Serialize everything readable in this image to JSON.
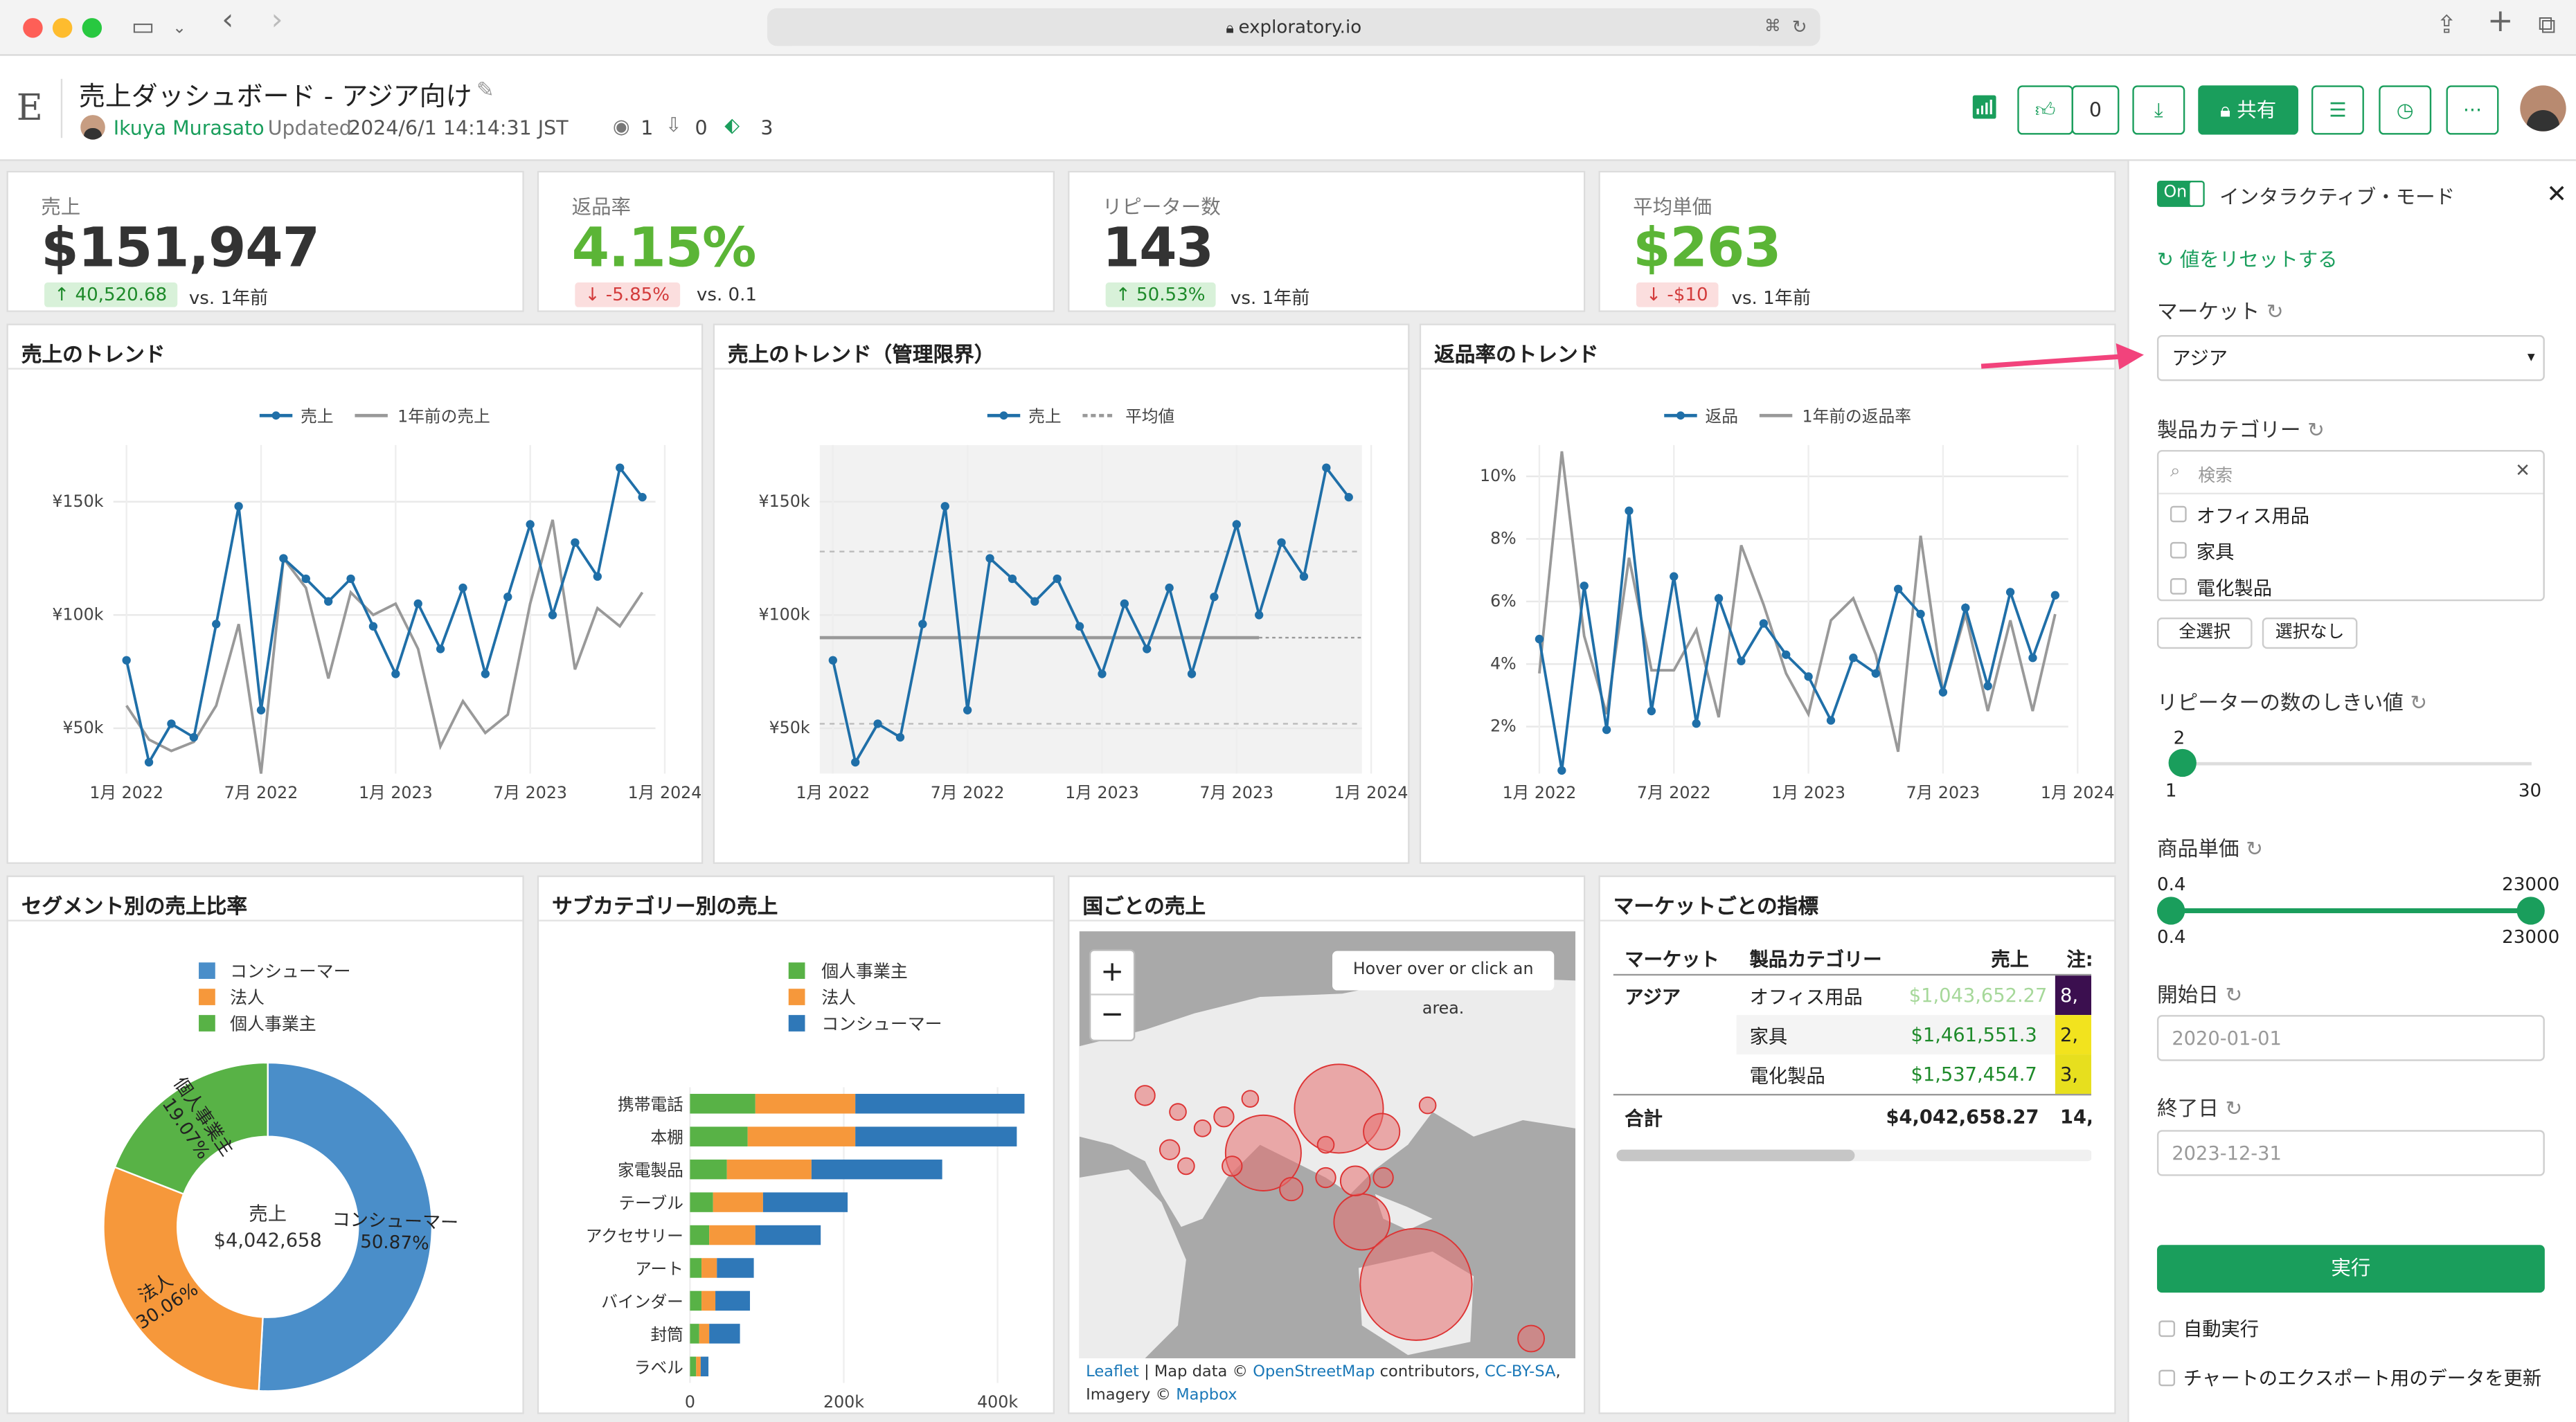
{
  "browser": {
    "url": "exploratory.io"
  },
  "header": {
    "logo": "E",
    "title": "売上ダッシュボード - アジア向け",
    "author": "Ikuya Murasato",
    "updated_prefix": "Updated",
    "updated_value": "2024/6/1 14:14:31 JST",
    "views": "1",
    "downloads": "0",
    "tags": "3",
    "like_count": "0",
    "share_label": "共有"
  },
  "kpis": [
    {
      "label": "売上",
      "value": "$151,947",
      "badge": "40,520.68",
      "badge_dir": "up",
      "vs": "vs. 1年前",
      "value_color": "#333333"
    },
    {
      "label": "返品率",
      "value": "4.15%",
      "badge": "-5.85%",
      "badge_dir": "down",
      "vs": "vs. 0.1",
      "value_color": "#5bb536"
    },
    {
      "label": "リピーター数",
      "value": "143",
      "badge": "50.53%",
      "badge_dir": "up",
      "vs": "vs. 1年前",
      "value_color": "#333333"
    },
    {
      "label": "平均単価",
      "value": "$263",
      "badge": "-$10",
      "badge_dir": "down",
      "vs": "vs. 1年前",
      "value_color": "#5bb536"
    }
  ],
  "trend1": {
    "title": "売上のトレンド",
    "legend_a": "売上",
    "legend_b": "1年前の売上",
    "yticks": [
      "¥150k",
      "¥100k",
      "¥50k"
    ],
    "xticks": [
      "1月 2022",
      "7月 2022",
      "1月 2023",
      "7月 2023",
      "1月 2024"
    ]
  },
  "trend2": {
    "title": "売上のトレンド（管理限界）",
    "legend_a": "売上",
    "legend_b": "平均値",
    "yticks": [
      "¥150k",
      "¥100k",
      "¥50k"
    ],
    "xticks": [
      "1月 2022",
      "7月 2022",
      "1月 2023",
      "7月 2023",
      "1月 2024"
    ]
  },
  "trend3": {
    "title": "返品率のトレンド",
    "legend_a": "返品",
    "legend_b": "1年前の返品率",
    "yticks": [
      "10%",
      "8%",
      "6%",
      "4%",
      "2%"
    ],
    "xticks": [
      "1月 2022",
      "7月 2022",
      "1月 2023",
      "7月 2023",
      "1月 2024"
    ]
  },
  "chart_data": [
    {
      "type": "line",
      "title": "売上のトレンド",
      "x": [
        "2022-01",
        "2022-02",
        "2022-03",
        "2022-04",
        "2022-05",
        "2022-06",
        "2022-07",
        "2022-08",
        "2022-09",
        "2022-10",
        "2022-11",
        "2022-12",
        "2023-01",
        "2023-02",
        "2023-03",
        "2023-04",
        "2023-05",
        "2023-06",
        "2023-07",
        "2023-08",
        "2023-09",
        "2023-10",
        "2023-11",
        "2023-12"
      ],
      "series": [
        {
          "name": "売上",
          "color": "#1f6fa8",
          "values": [
            80000,
            35000,
            52000,
            46000,
            96000,
            148000,
            58000,
            125000,
            116000,
            106000,
            116000,
            95000,
            74000,
            105000,
            85000,
            112000,
            74000,
            108000,
            140000,
            100000,
            132000,
            117000,
            165000,
            152000
          ]
        },
        {
          "name": "1年前の売上",
          "color": "#999999",
          "values": [
            60000,
            45000,
            40000,
            44000,
            60000,
            96000,
            30000,
            125000,
            112000,
            72000,
            110000,
            100000,
            105000,
            85000,
            42000,
            62000,
            48000,
            56000,
            105000,
            142000,
            76000,
            103000,
            95000,
            110000
          ]
        }
      ],
      "ylim": [
        30000,
        175000
      ]
    },
    {
      "type": "line",
      "title": "売上のトレンド（管理限界）",
      "x": [
        "2022-01",
        "2022-02",
        "2022-03",
        "2022-04",
        "2022-05",
        "2022-06",
        "2022-07",
        "2022-08",
        "2022-09",
        "2022-10",
        "2022-11",
        "2022-12",
        "2023-01",
        "2023-02",
        "2023-03",
        "2023-04",
        "2023-05",
        "2023-06",
        "2023-07",
        "2023-08",
        "2023-09",
        "2023-10",
        "2023-11",
        "2023-12"
      ],
      "series": [
        {
          "name": "売上",
          "color": "#1f6fa8",
          "values": [
            80000,
            35000,
            52000,
            46000,
            96000,
            148000,
            58000,
            125000,
            116000,
            106000,
            116000,
            95000,
            74000,
            105000,
            85000,
            112000,
            74000,
            108000,
            140000,
            100000,
            132000,
            117000,
            165000,
            152000
          ]
        }
      ],
      "mean": 90000,
      "ucl": 128000,
      "lcl": 52000,
      "ylim": [
        30000,
        175000
      ]
    },
    {
      "type": "line",
      "title": "返品率のトレンド",
      "x": [
        "2022-01",
        "2022-02",
        "2022-03",
        "2022-04",
        "2022-05",
        "2022-06",
        "2022-07",
        "2022-08",
        "2022-09",
        "2022-10",
        "2022-11",
        "2022-12",
        "2023-01",
        "2023-02",
        "2023-03",
        "2023-04",
        "2023-05",
        "2023-06",
        "2023-07",
        "2023-08",
        "2023-09",
        "2023-10",
        "2023-11",
        "2023-12"
      ],
      "series": [
        {
          "name": "返品",
          "color": "#1f6fa8",
          "values": [
            4.8,
            0.6,
            6.5,
            1.9,
            8.9,
            2.5,
            6.8,
            2.1,
            6.1,
            4.1,
            5.3,
            4.3,
            3.6,
            2.2,
            4.2,
            3.7,
            6.4,
            5.6,
            3.1,
            5.8,
            3.3,
            6.3,
            4.2,
            6.2
          ]
        },
        {
          "name": "1年前の返品率",
          "color": "#999999",
          "values": [
            3.7,
            10.8,
            4.9,
            2.4,
            7.4,
            3.8,
            3.8,
            5.1,
            2.3,
            7.8,
            5.9,
            3.7,
            2.4,
            5.4,
            6.1,
            4.3,
            1.2,
            8.1,
            3.1,
            5.6,
            2.5,
            5.4,
            2.5,
            5.6
          ]
        }
      ],
      "ylim": [
        0.5,
        11
      ]
    },
    {
      "type": "pie",
      "title": "セグメント別の売上比率",
      "categories": [
        "コンシューマー",
        "法人",
        "個人事業主"
      ],
      "values": [
        50.87,
        30.06,
        19.07
      ],
      "colors": [
        "#4a8ec9",
        "#f6983b",
        "#58b246"
      ],
      "center_label": "売上",
      "center_value": "$4,042,658"
    },
    {
      "type": "bar",
      "title": "サブカテゴリー別の売上",
      "categories": [
        "携帯電話",
        "本棚",
        "家電製品",
        "テーブル",
        "アクセサリー",
        "アート",
        "バインダー",
        "封筒",
        "ラベル"
      ],
      "series": [
        {
          "name": "個人事業主",
          "color": "#58b246",
          "values": [
            85000,
            75000,
            48000,
            30000,
            25000,
            15000,
            15000,
            12000,
            8000
          ]
        },
        {
          "name": "法人",
          "color": "#f6983b",
          "values": [
            130000,
            140000,
            110000,
            65000,
            60000,
            20000,
            18000,
            13000,
            6000
          ]
        },
        {
          "name": "コンシューマー",
          "color": "#2f78b8",
          "values": [
            220000,
            210000,
            170000,
            110000,
            85000,
            48000,
            45000,
            40000,
            10000
          ]
        }
      ],
      "xticks": [
        "0",
        "200k",
        "400k"
      ],
      "xlabel": "売上",
      "xlim": [
        0,
        470000
      ]
    }
  ],
  "segment": {
    "title": "セグメント別の売上比率",
    "legend": [
      "コンシューマー",
      "法人",
      "個人事業主"
    ],
    "center_label": "売上",
    "center_value": "$4,042,658",
    "pct": [
      "50.87%",
      "30.06%",
      "19.07%"
    ]
  },
  "subcat": {
    "title": "サブカテゴリー別の売上",
    "legend": [
      "個人事業主",
      "法人",
      "コンシューマー"
    ],
    "xlabel": "売上",
    "xticks": [
      "0",
      "200k",
      "400k"
    ]
  },
  "map": {
    "title": "国ごとの売上",
    "hover_text": "Hover over or click an area.",
    "zoom_in": "+",
    "zoom_out": "−",
    "attr_leaflet": "Leaflet",
    "attr_mid": " | Map data © ",
    "attr_osm": "OpenStreetMap",
    "attr_contrib": " contributors, ",
    "attr_license": "CC-BY-SA",
    "attr_comma": ",",
    "attr_imagery": "Imagery © ",
    "attr_mapbox": "Mapbox"
  },
  "table": {
    "title": "マーケットごとの指標",
    "headers": [
      "マーケット",
      "製品カテゴリー",
      "売上",
      "注:"
    ],
    "rows": [
      {
        "market": "アジア",
        "category": "オフィス用品",
        "sales": "$1,043,652.27",
        "note": "8,",
        "note_color": "#3b0f4f",
        "sales_color": "#a6d89a"
      },
      {
        "market": "",
        "category": "家具",
        "sales": "$1,461,551.3",
        "note": "2,",
        "note_color": "#f2e31e",
        "sales_color": "#1e8a2a"
      },
      {
        "market": "",
        "category": "電化製品",
        "sales": "$1,537,454.7",
        "note": "3,",
        "note_color": "#e7df1e",
        "sales_color": "#1e8a2a"
      }
    ],
    "total_label": "合計",
    "total_sales": "$4,042,658.27",
    "total_note": "14,"
  },
  "side": {
    "toggle": "On",
    "mode_label": "インタラクティブ・モード",
    "reset_label": "値をリセットする",
    "market_label": "マーケット",
    "market_value": "アジア",
    "category_label": "製品カテゴリー",
    "search_placeholder": "検索",
    "categories": [
      "オフィス用品",
      "家具",
      "電化製品"
    ],
    "select_all": "全選択",
    "select_none": "選択なし",
    "repeater_label": "リピーターの数のしきい値",
    "repeater_value": "2",
    "repeater_min": "1",
    "repeater_max": "30",
    "repeater_level": 0.034,
    "price_label": "商品単価",
    "price_low": "0.4",
    "price_high": "23000",
    "price_min": "0.4",
    "price_max": "23000",
    "start_label": "開始日",
    "start_value": "2020-01-01",
    "end_label": "終了日",
    "end_value": "2023-12-31",
    "run_label": "実行",
    "auto_label": "自動実行",
    "export_label": "チャートのエクスポート用のデータを更新"
  }
}
